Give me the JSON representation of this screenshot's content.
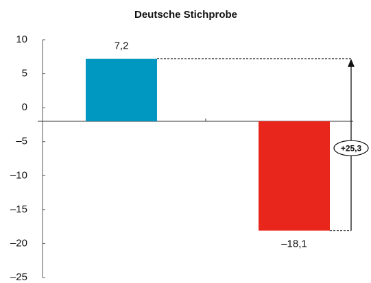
{
  "chart_data": {
    "type": "bar",
    "title": "Deutsche Stichprobe",
    "categories": [
      null,
      null
    ],
    "values": [
      7.2,
      -18.1
    ],
    "value_labels": [
      "7,2",
      "–18,1"
    ],
    "colors": [
      "#0097c0",
      "#e8261c"
    ],
    "baseline": -2,
    "ylim": [
      -25,
      10
    ],
    "yticks": [
      10,
      5,
      0,
      {
        "value": -5,
        "label": "–5"
      },
      {
        "value": -10,
        "label": "–10"
      },
      {
        "value": -15,
        "label": "–15"
      },
      {
        "value": -20,
        "label": "–20"
      },
      {
        "value": -25,
        "label": "–25"
      }
    ],
    "annotation": "+25,3"
  }
}
